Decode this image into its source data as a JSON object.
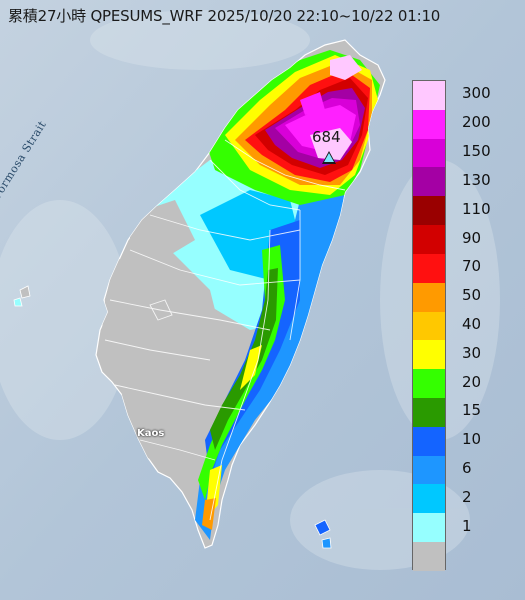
{
  "title": "累積27小時 QPESUMS_WRF 2025/10/20 22:10~10/22 01:10",
  "labels": {
    "strait": "Formosa Strait",
    "place": "Kaos",
    "max_value": "684"
  },
  "legend": {
    "items": [
      {
        "label": "300",
        "color": "#ffc8ff"
      },
      {
        "label": "200",
        "color": "#ff20ff"
      },
      {
        "label": "150",
        "color": "#d800d8"
      },
      {
        "label": "130",
        "color": "#a400a4"
      },
      {
        "label": "110",
        "color": "#9a0000"
      },
      {
        "label": "90",
        "color": "#d20000"
      },
      {
        "label": "70",
        "color": "#ff1010"
      },
      {
        "label": "50",
        "color": "#ff9a00"
      },
      {
        "label": "40",
        "color": "#ffc800"
      },
      {
        "label": "30",
        "color": "#ffff00"
      },
      {
        "label": "20",
        "color": "#34ff00"
      },
      {
        "label": "15",
        "color": "#2a9a00"
      },
      {
        "label": "10",
        "color": "#1464ff"
      },
      {
        "label": "6",
        "color": "#1e96ff"
      },
      {
        "label": "2",
        "color": "#00c8ff"
      },
      {
        "label": "1",
        "color": "#96ffff"
      },
      {
        "label": "",
        "color": "#c0c0c0"
      }
    ]
  }
}
